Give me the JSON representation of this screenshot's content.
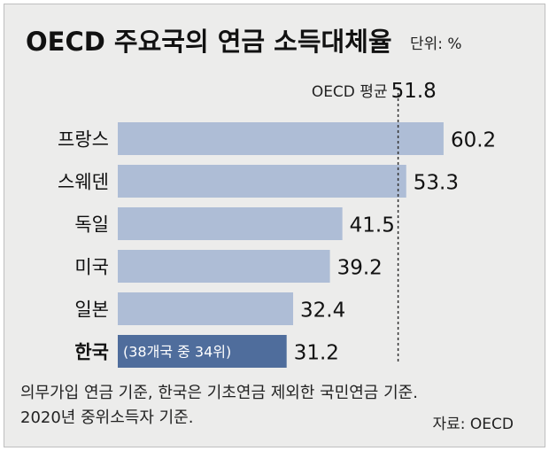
{
  "chart_data": {
    "type": "bar",
    "orientation": "horizontal",
    "title": "OECD 주요국의 연금 소득대체율",
    "unit": "단위: %",
    "categories": [
      "프랑스",
      "스웨덴",
      "독일",
      "미국",
      "일본",
      "한국"
    ],
    "values": [
      60.2,
      53.3,
      41.5,
      39.2,
      32.4,
      31.2
    ],
    "value_labels": [
      "60.2",
      "53.3",
      "41.5",
      "39.2",
      "32.4",
      "31.2"
    ],
    "highlight": {
      "category": "한국",
      "note": "(38개국 중 34위)",
      "color": "#4f6d9c"
    },
    "reference_line": {
      "label": "OECD 평균",
      "value": 51.8,
      "value_label": "51.8",
      "style": "dashed"
    },
    "bar_color": "#aebdd6",
    "footnote_lines": [
      "의무가입 연금 기준, 한국은 기초연금 제외한 국민연금 기준.",
      "2020년 중위소득자 기준."
    ],
    "source": "자료: OECD",
    "grid": false
  }
}
